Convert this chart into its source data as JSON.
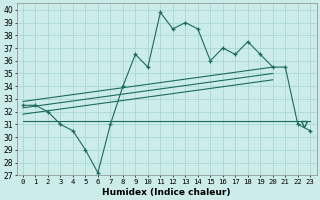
{
  "xlabel": "Humidex (Indice chaleur)",
  "bg_color": "#ccecea",
  "grid_color": "#aad8d4",
  "line_color": "#1a6b5a",
  "xlim": [
    -0.5,
    23.5
  ],
  "ylim": [
    27,
    40.5
  ],
  "yticks": [
    27,
    28,
    29,
    30,
    31,
    32,
    33,
    34,
    35,
    36,
    37,
    38,
    39,
    40
  ],
  "xticks": [
    0,
    1,
    2,
    3,
    4,
    5,
    6,
    7,
    8,
    9,
    10,
    11,
    12,
    13,
    14,
    15,
    16,
    17,
    18,
    19,
    20,
    21,
    22,
    23
  ],
  "main_x": [
    0,
    1,
    2,
    3,
    4,
    5,
    6,
    7,
    8,
    9,
    10,
    11,
    12,
    13,
    14,
    15,
    16,
    17,
    18,
    19,
    20,
    21,
    22,
    23
  ],
  "main_y": [
    32.5,
    32.5,
    32.0,
    31.0,
    30.5,
    29.0,
    27.2,
    31.0,
    34.0,
    36.5,
    35.5,
    39.8,
    38.5,
    39.0,
    38.5,
    36.0,
    37.0,
    36.5,
    37.5,
    36.5,
    35.5,
    35.5,
    31.0,
    30.5
  ],
  "line1_x": [
    0,
    20
  ],
  "line1_y": [
    32.8,
    35.5
  ],
  "line2_x": [
    0,
    20
  ],
  "line2_y": [
    32.3,
    35.0
  ],
  "line3_x": [
    0,
    20
  ],
  "line3_y": [
    31.8,
    34.5
  ],
  "line4_x": [
    0,
    23
  ],
  "line4_y": [
    31.3,
    31.3
  ],
  "triangle_x": 22.5,
  "triangle_y": 31.0
}
